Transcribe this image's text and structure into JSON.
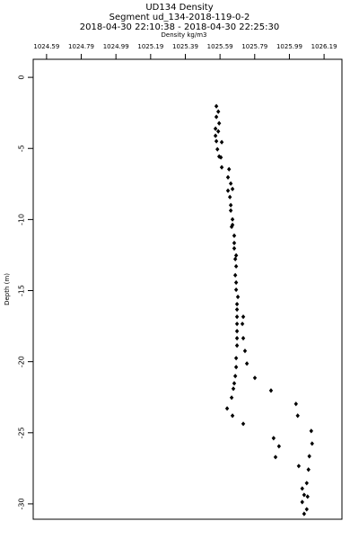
{
  "chart_data": {
    "type": "scatter",
    "title": "UD134 Density",
    "subtitle": "Segment ud_134-2018-119-0-2",
    "time_range": "2018-04-30 22:10:38 - 2018-04-30 22:25:30",
    "x_label": "Density kg/m3",
    "y_label": "Depth (m)",
    "color": "#000000",
    "x": [
      1025.569,
      1025.58,
      1025.569,
      1025.585,
      1025.564,
      1025.58,
      1025.564,
      1025.569,
      1025.6,
      1025.575,
      1025.585,
      1025.595,
      1025.6,
      1025.642,
      1025.636,
      1025.652,
      1025.636,
      1025.662,
      1025.647,
      1025.652,
      1025.652,
      1025.662,
      1025.662,
      1025.657,
      1025.672,
      1025.672,
      1025.672,
      1025.683,
      1025.678,
      1025.683,
      1025.678,
      1025.683,
      1025.683,
      1025.693,
      1025.688,
      1025.688,
      1025.688,
      1025.724,
      1025.688,
      1025.719,
      1025.688,
      1025.688,
      1025.724,
      1025.688,
      1025.734,
      1025.683,
      1025.745,
      1025.683,
      1025.678,
      1025.791,
      1025.672,
      1025.667,
      1025.884,
      1025.657,
      1025.631,
      1026.028,
      1025.662,
      1026.038,
      1025.724,
      1026.116,
      1025.899,
      1026.121,
      1025.93,
      1026.105,
      1025.91,
      1026.044,
      1026.1,
      1026.09,
      1026.064,
      1026.075,
      1026.095,
      1026.064,
      1026.09,
      1026.075
    ],
    "values": [
      -2.03,
      -2.41,
      -2.78,
      -3.23,
      -3.61,
      -3.8,
      -4.11,
      -4.49,
      -4.56,
      -5.06,
      -5.57,
      -5.63,
      -6.33,
      -6.46,
      -7.03,
      -7.47,
      -7.97,
      -7.85,
      -8.42,
      -8.99,
      -9.37,
      -9.99,
      -10.38,
      -10.51,
      -11.14,
      -11.65,
      -12.03,
      -12.53,
      -12.78,
      -13.29,
      -13.92,
      -14.43,
      -14.94,
      -15.44,
      -15.95,
      -16.33,
      -16.84,
      -16.84,
      -17.34,
      -17.34,
      -17.85,
      -18.35,
      -18.35,
      -18.86,
      -19.24,
      -19.75,
      -20.13,
      -20.38,
      -21.01,
      -21.14,
      -21.52,
      -21.9,
      -22.03,
      -22.53,
      -23.29,
      -22.97,
      -23.8,
      -23.8,
      -24.37,
      -24.87,
      -25.38,
      -25.76,
      -25.95,
      -26.65,
      -26.71,
      -27.34,
      -27.59,
      -28.54,
      -28.92,
      -29.37,
      -29.49,
      -29.87,
      -30.38,
      -30.7
    ],
    "xlim": [
      1024.513,
      1026.293
    ],
    "ylim": [
      -31.08,
      1.27
    ],
    "xticks": [
      1024.59,
      1024.79,
      1024.99,
      1025.19,
      1025.39,
      1025.59,
      1025.79,
      1025.99,
      1026.19
    ],
    "yticks": [
      0,
      -5,
      -10,
      -15,
      -20,
      -25,
      -30
    ]
  }
}
